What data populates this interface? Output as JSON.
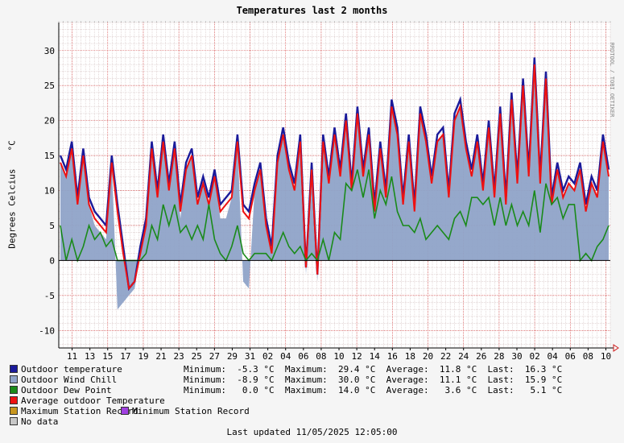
{
  "chart_data": {
    "type": "line",
    "title": "Temperatures last 2 months",
    "ylabel": "Degrees Celcius",
    "yunit": "°C",
    "watermark": "RRDTOOL / TOBI OETIKER",
    "ylim": [
      -12.5,
      34
    ],
    "yticks": [
      -10,
      -5,
      0,
      5,
      10,
      15,
      20,
      25,
      30
    ],
    "xticks": [
      "11",
      "13",
      "15",
      "17",
      "19",
      "21",
      "23",
      "25",
      "27",
      "29",
      "31",
      "02",
      "04",
      "06",
      "08",
      "10",
      "12",
      "14",
      "16",
      "18",
      "20",
      "22",
      "24",
      "26",
      "28",
      "30",
      "02",
      "04",
      "06",
      "08",
      "10"
    ],
    "grid": true,
    "legend_position": "bottom-left",
    "series": [
      {
        "name": "Outdoor temperature",
        "color": "#1a1a9a",
        "values": [
          15,
          13,
          17,
          9,
          16,
          9,
          7,
          6,
          5,
          15,
          8,
          2,
          -4,
          -3,
          2,
          6,
          17,
          10,
          18,
          11,
          17,
          8,
          14,
          16,
          9,
          12,
          9,
          13,
          8,
          9,
          10,
          18,
          8,
          7,
          11,
          14,
          6,
          2,
          15,
          19,
          14,
          11,
          18,
          -1,
          14,
          -2,
          18,
          12,
          19,
          13,
          21,
          11,
          22,
          13,
          19,
          8,
          17,
          10,
          23,
          19,
          9,
          18,
          8,
          22,
          18,
          12,
          18,
          19,
          10,
          21,
          23,
          17,
          13,
          18,
          11,
          20,
          10,
          22,
          9,
          24,
          12,
          26,
          13,
          29,
          12,
          27,
          9,
          14,
          10,
          12,
          11,
          14,
          8,
          12,
          10,
          18,
          13
        ]
      },
      {
        "name": "Outdoor Wind Chill",
        "color": "#8fa3c8",
        "values": [
          14,
          12,
          16,
          8,
          15,
          8,
          5,
          4,
          3,
          14,
          -7,
          -6,
          -5,
          -4,
          1,
          5,
          16,
          9,
          17,
          10,
          16,
          6,
          13,
          15,
          8,
          11,
          8,
          12,
          6,
          6,
          9,
          17,
          -3,
          -4,
          10,
          13,
          5,
          1,
          14,
          18,
          13,
          10,
          17,
          -2,
          13,
          -3,
          17,
          11,
          18,
          12,
          20,
          10,
          21,
          12,
          18,
          7,
          16,
          9,
          22,
          18,
          8,
          17,
          7,
          21,
          17,
          11,
          17,
          18,
          9,
          20,
          22,
          16,
          12,
          17,
          10,
          19,
          9,
          21,
          8,
          23,
          11,
          25,
          12,
          28,
          11,
          26,
          8,
          13,
          9,
          11,
          10,
          13,
          7,
          11,
          9,
          17,
          12
        ]
      },
      {
        "name": "Outdoor Dew Point",
        "color": "#1a8a1a",
        "values": [
          5,
          0,
          3,
          0,
          2,
          5,
          3,
          4,
          2,
          3,
          0,
          0,
          0,
          0,
          0,
          1,
          5,
          3,
          8,
          5,
          8,
          4,
          5,
          3,
          5,
          3,
          8,
          3,
          1,
          0,
          2,
          5,
          1,
          0,
          1,
          1,
          1,
          0,
          2,
          4,
          2,
          1,
          2,
          0,
          1,
          0,
          3,
          0,
          4,
          3,
          11,
          10,
          13,
          9,
          13,
          6,
          10,
          8,
          12,
          7,
          5,
          5,
          4,
          6,
          3,
          4,
          5,
          4,
          3,
          6,
          7,
          5,
          9,
          9,
          8,
          9,
          5,
          9,
          5,
          8,
          5,
          7,
          5,
          10,
          4,
          11,
          8,
          9,
          6,
          8,
          8,
          0,
          1,
          0,
          2,
          3,
          5
        ]
      },
      {
        "name": "Average outdoor Temperature",
        "color": "#ee1111",
        "values": [
          14,
          12,
          16,
          8,
          15,
          8,
          6,
          5,
          4,
          14,
          7,
          1,
          -4,
          -3,
          1,
          5,
          16,
          9,
          17,
          10,
          16,
          7,
          13,
          15,
          8,
          11,
          8,
          12,
          7,
          8,
          9,
          17,
          7,
          6,
          10,
          13,
          5,
          1,
          14,
          18,
          13,
          10,
          17,
          -1,
          13,
          -2,
          17,
          11,
          18,
          12,
          20,
          10,
          21,
          12,
          18,
          7,
          16,
          9,
          22,
          18,
          8,
          17,
          7,
          21,
          17,
          11,
          17,
          18,
          9,
          20,
          22,
          16,
          12,
          17,
          10,
          19,
          9,
          21,
          8,
          23,
          11,
          25,
          12,
          28,
          11,
          26,
          8,
          13,
          9,
          11,
          10,
          13,
          7,
          11,
          9,
          17,
          12
        ]
      }
    ],
    "extra_legend": [
      {
        "name": "Maximum Station Record",
        "color": "#c8961e"
      },
      {
        "name": "Minimum Station Record",
        "color": "#a040e0"
      },
      {
        "name": "No data",
        "color": "#c8c8c8"
      }
    ],
    "stats": [
      "Minimum:  -5.3 °C  Maximum:  29.4 °C  Average:  11.8 °C  Last:  16.3 °C",
      "Minimum:  -8.9 °C  Maximum:  30.0 °C  Average:  11.1 °C  Last:  15.9 °C",
      "Minimum:   0.0 °C  Maximum:  14.0 °C  Average:   3.6 °C  Last:   5.1 °C"
    ],
    "last_updated": "Last updated 11/05/2025 12:05:00"
  }
}
